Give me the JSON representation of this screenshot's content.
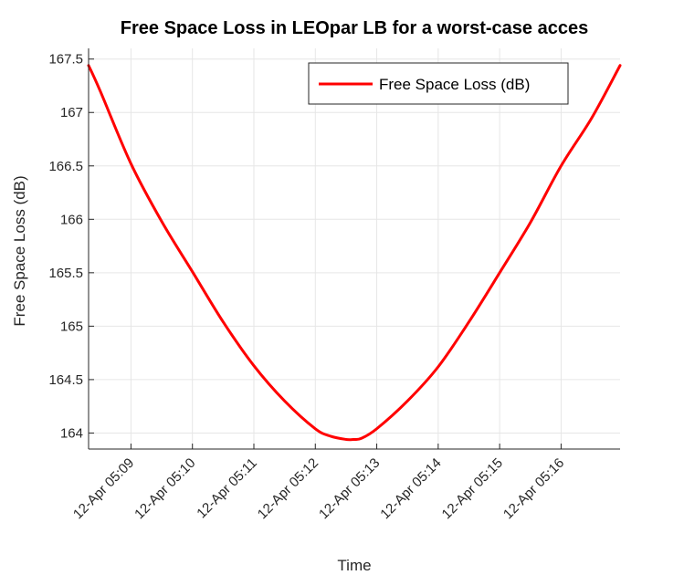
{
  "chart_data": {
    "type": "line",
    "title": "Free Space Loss in LEOpar LB for a worst-case acces",
    "xlabel": "Time",
    "ylabel": "Free Space Loss (dB)",
    "x_unit": "minutes after 12-Apr 05:00",
    "xlim": [
      8.31,
      16.96
    ],
    "ylim": [
      163.85,
      167.6
    ],
    "x_ticks": [
      9,
      10,
      11,
      12,
      13,
      14,
      15,
      16
    ],
    "x_tick_labels": [
      "12-Apr 05:09",
      "12-Apr 05:10",
      "12-Apr 05:11",
      "12-Apr 05:12",
      "12-Apr 05:13",
      "12-Apr 05:14",
      "12-Apr 05:15",
      "12-Apr 05:16"
    ],
    "y_ticks": [
      164,
      164.5,
      165,
      165.5,
      166,
      166.5,
      167,
      167.5
    ],
    "y_tick_labels": [
      "164",
      "164.5",
      "165",
      "165.5",
      "166",
      "166.5",
      "167",
      "167.5"
    ],
    "grid": true,
    "legend": {
      "position": "top-right"
    },
    "series": [
      {
        "name": "Free Space Loss (dB)",
        "color": "#ff0000",
        "x": [
          8.31,
          8.5,
          9.0,
          9.5,
          10.0,
          10.5,
          11.0,
          11.5,
          12.0,
          12.25,
          12.5,
          12.62,
          12.75,
          13.0,
          13.5,
          14.0,
          14.5,
          15.0,
          15.5,
          16.0,
          16.5,
          16.96
        ],
        "y": [
          167.44,
          167.2,
          166.52,
          165.98,
          165.51,
          165.04,
          164.63,
          164.3,
          164.04,
          163.97,
          163.94,
          163.94,
          163.95,
          164.04,
          164.3,
          164.62,
          165.04,
          165.5,
          165.97,
          166.5,
          166.95,
          167.44
        ]
      }
    ]
  }
}
